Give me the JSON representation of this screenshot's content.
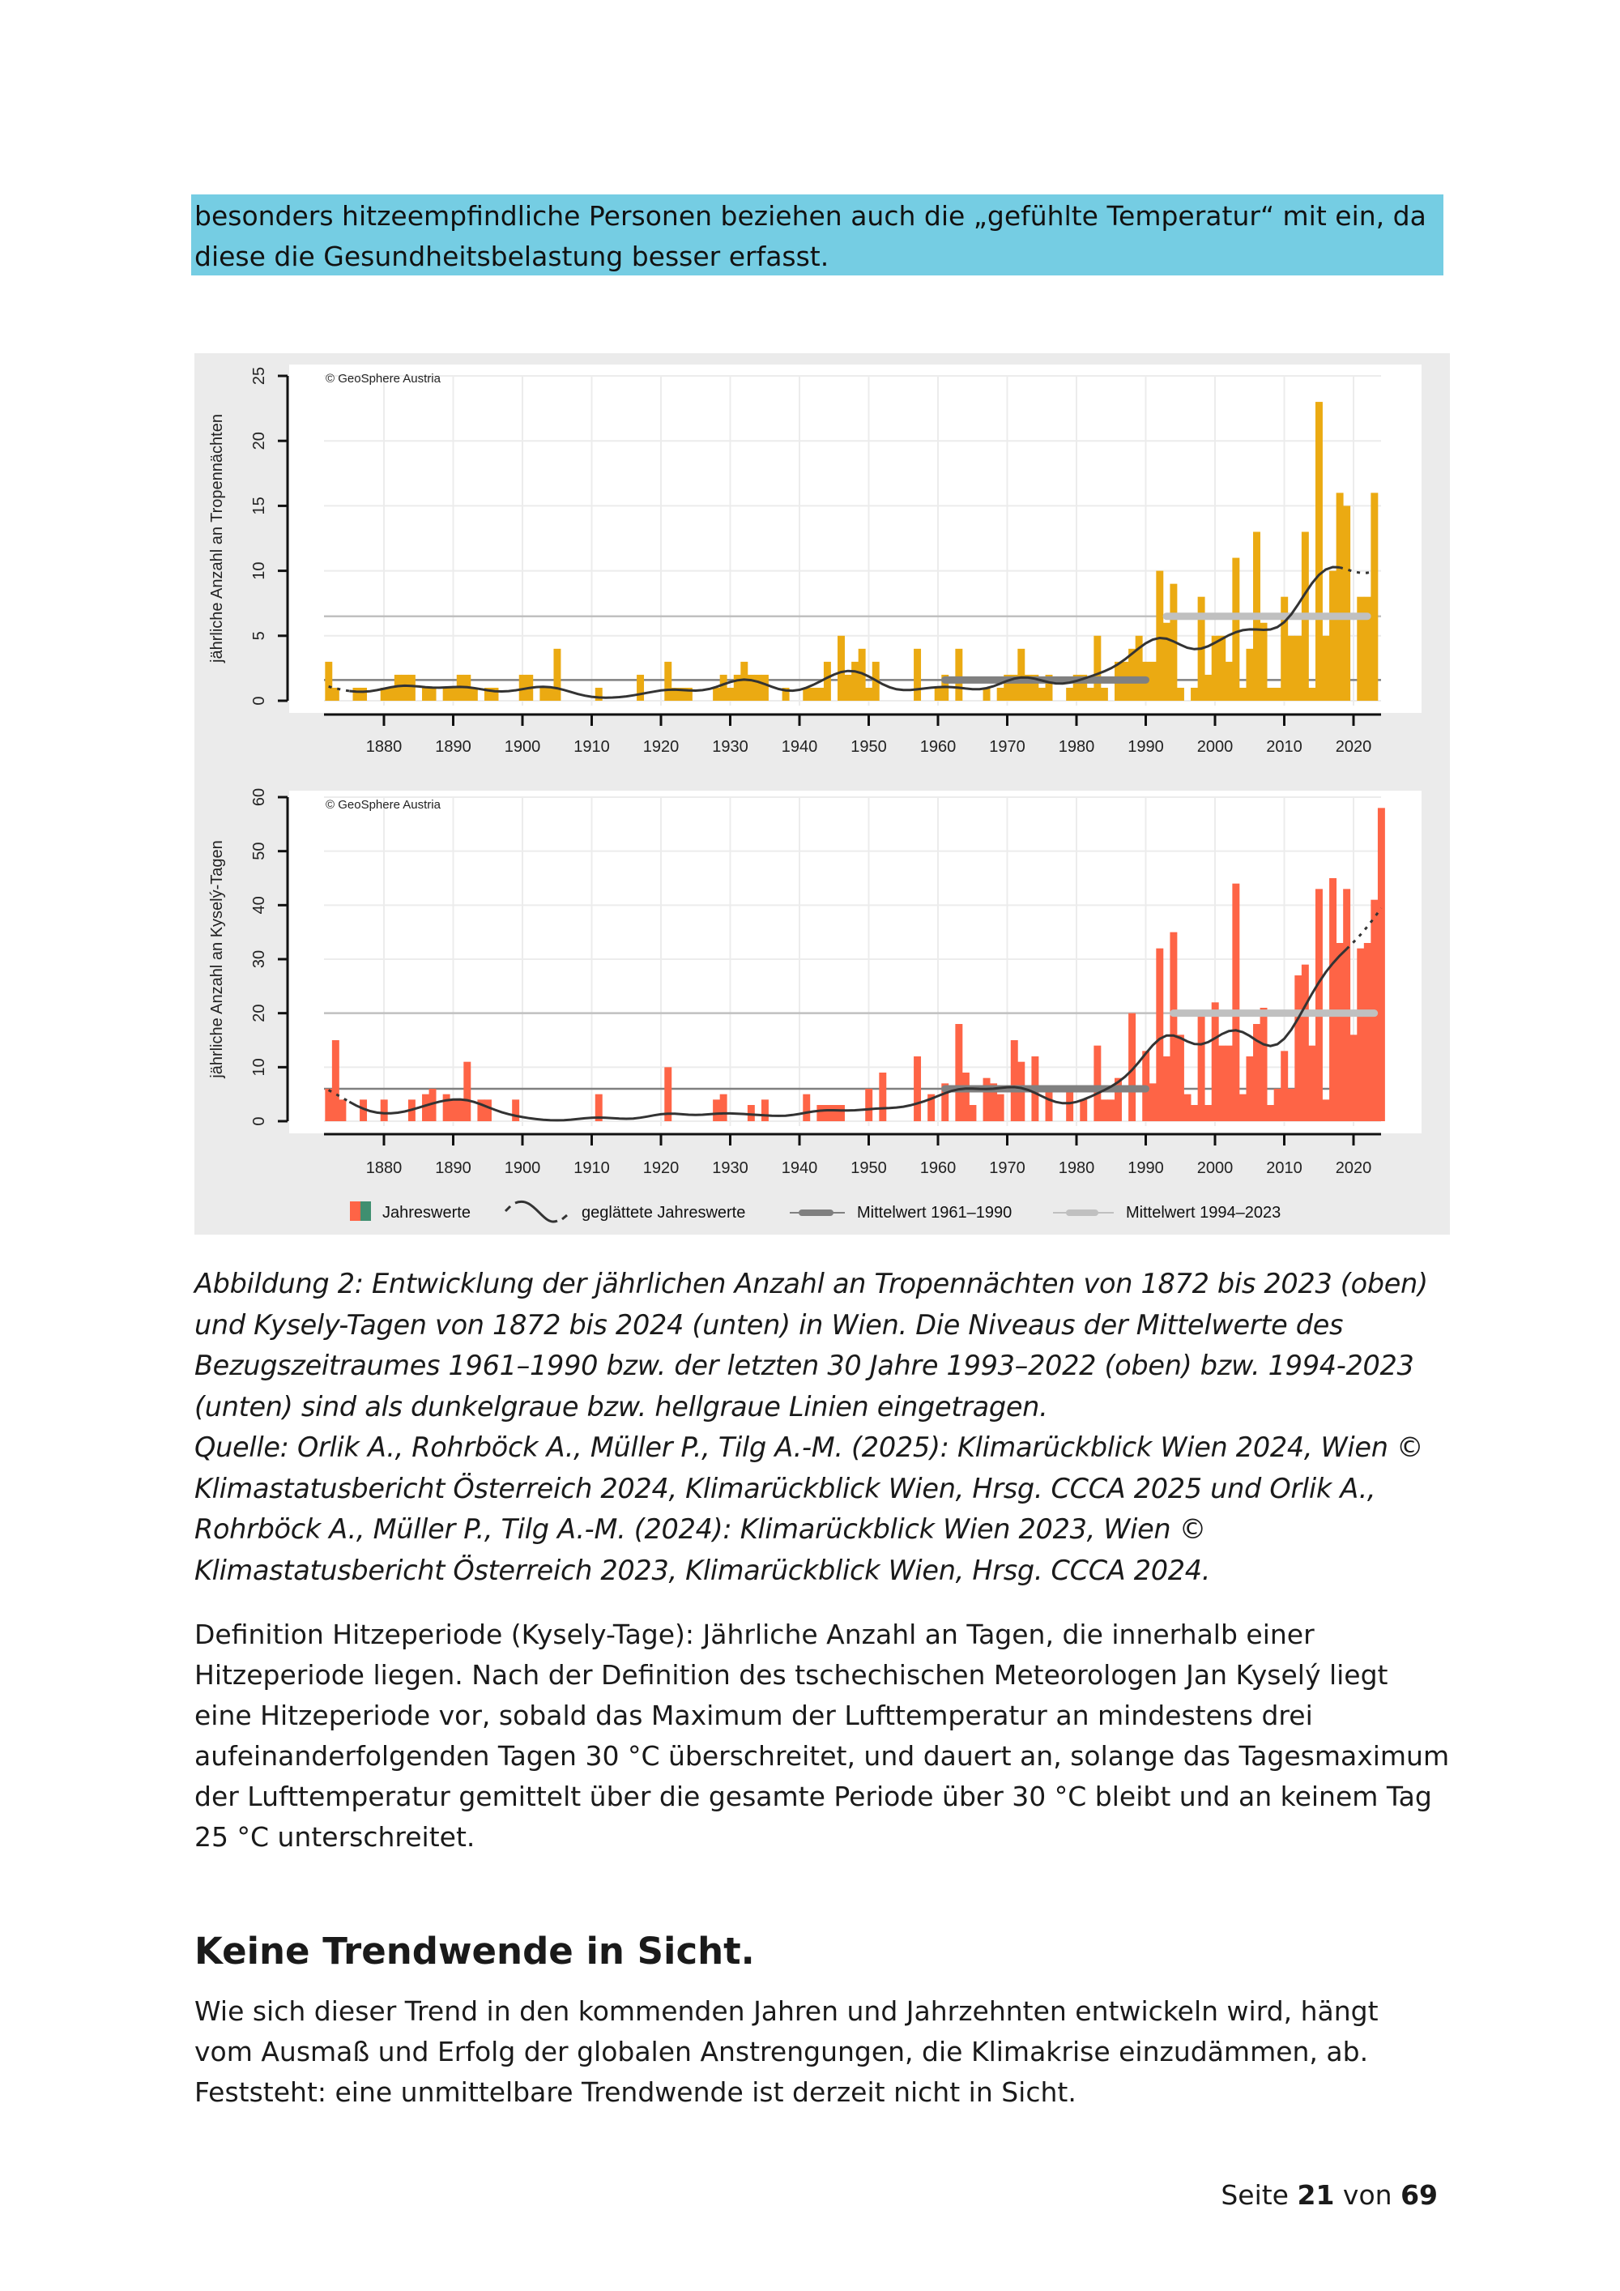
{
  "highlight": {
    "lines": [
      "besonders hitzeempfindliche Personen beziehen auch die „gefühlte Temperatur“ mit ein, da",
      "diese die Gesundheitsbelastung besser erfasst."
    ],
    "color": "#75cde3"
  },
  "figure": {
    "credit": "© GeoSphere Austria",
    "legend": {
      "bars": "Jahreswerte",
      "smooth": "geglättete Jahreswerte",
      "mean_ref": "Mittelwert 1961–1990",
      "mean_recent": "Mittelwert 1994–2023"
    }
  },
  "chart_data": [
    {
      "type": "bar",
      "ylabel": "jährliche Anzahl an Tropennächten",
      "xlabel": "",
      "x_range": [
        1872,
        2023
      ],
      "xticks": [
        "1880",
        "1890",
        "1900",
        "1910",
        "1920",
        "1930",
        "1940",
        "1950",
        "1960",
        "1970",
        "1980",
        "1990",
        "2000",
        "2010",
        "2020"
      ],
      "yticks": [
        "0",
        "5",
        "10",
        "15",
        "20",
        "25"
      ],
      "ylim": [
        0,
        25
      ],
      "grid": true,
      "bar_color": "#ebaa12",
      "values": [
        3,
        1,
        0,
        0,
        1,
        1,
        0,
        0,
        1,
        1,
        2,
        2,
        2,
        0,
        1,
        1,
        0,
        1,
        1,
        2,
        2,
        1,
        0,
        1,
        1,
        0,
        0,
        0,
        2,
        2,
        0,
        1,
        1,
        4,
        0,
        0,
        0,
        0,
        0,
        1,
        0,
        0,
        0,
        0,
        0,
        2,
        0,
        0,
        0,
        3,
        1,
        1,
        1,
        0,
        0,
        0,
        1,
        2,
        1,
        2,
        3,
        2,
        2,
        2,
        0,
        0,
        1,
        0,
        0,
        1,
        1,
        1,
        3,
        0,
        5,
        2,
        3,
        4,
        1,
        3,
        0,
        0,
        0,
        0,
        0,
        4,
        0,
        0,
        1,
        2,
        0,
        4,
        0,
        0,
        0,
        1,
        0,
        1,
        2,
        2,
        4,
        2,
        2,
        1,
        2,
        0,
        0,
        1,
        2,
        2,
        1,
        5,
        1,
        0,
        3,
        3,
        4,
        5,
        3,
        3,
        10,
        6,
        9,
        1,
        0,
        1,
        8,
        2,
        5,
        5,
        3,
        11,
        1,
        4,
        13,
        6,
        1,
        1,
        8,
        5,
        5,
        13,
        1,
        23,
        5,
        10,
        16,
        15,
        0,
        8,
        8,
        16
      ],
      "reference_lines": [
        {
          "period": [
            1961,
            1990
          ],
          "value": 1.6,
          "color": "#808080"
        },
        {
          "period": [
            1993,
            2022
          ],
          "value": 6.5,
          "color": "#c0c0c0"
        }
      ]
    },
    {
      "type": "bar",
      "ylabel": "jährliche Anzahl an Kyselý-Tagen",
      "xlabel": "",
      "x_range": [
        1872,
        2024
      ],
      "xticks": [
        "1880",
        "1890",
        "1900",
        "1910",
        "1920",
        "1930",
        "1940",
        "1950",
        "1960",
        "1970",
        "1980",
        "1990",
        "2000",
        "2010",
        "2020"
      ],
      "yticks": [
        "0",
        "10",
        "20",
        "30",
        "40",
        "50",
        "60"
      ],
      "ylim": [
        0,
        60
      ],
      "grid": true,
      "bar_color": "#fe6446",
      "values": [
        6,
        15,
        4,
        0,
        0,
        4,
        0,
        0,
        4,
        0,
        0,
        0,
        4,
        0,
        5,
        6,
        0,
        5,
        4,
        4,
        11,
        0,
        4,
        4,
        0,
        0,
        0,
        4,
        0,
        0,
        0,
        0,
        0,
        0,
        0,
        0,
        0,
        0,
        0,
        5,
        0,
        0,
        0,
        0,
        0,
        0,
        0,
        0,
        0,
        10,
        0,
        0,
        0,
        0,
        0,
        0,
        4,
        5,
        0,
        0,
        0,
        3,
        0,
        4,
        0,
        0,
        0,
        0,
        0,
        5,
        0,
        3,
        3,
        3,
        3,
        0,
        0,
        0,
        6,
        0,
        9,
        0,
        0,
        0,
        0,
        12,
        0,
        5,
        0,
        7,
        0,
        18,
        9,
        3,
        0,
        8,
        7,
        5,
        0,
        15,
        11,
        0,
        12,
        0,
        6,
        0,
        0,
        6,
        0,
        4,
        0,
        14,
        4,
        4,
        8,
        0,
        20,
        0,
        13,
        7,
        32,
        12,
        35,
        16,
        5,
        3,
        20,
        3,
        22,
        14,
        14,
        44,
        5,
        12,
        18,
        21,
        3,
        6,
        13,
        6,
        27,
        29,
        14,
        43,
        4,
        45,
        33,
        43,
        16,
        32,
        33,
        41,
        58
      ],
      "reference_lines": [
        {
          "period": [
            1961,
            1990
          ],
          "value": 6,
          "color": "#808080"
        },
        {
          "period": [
            1994,
            2023
          ],
          "value": 20,
          "color": "#c0c0c0"
        }
      ]
    }
  ],
  "caption": {
    "lines": [
      "Abbildung 2: Entwicklung der jährlichen Anzahl an Tropennächten von 1872 bis 2023 (oben)",
      "und Kysely-Tagen von 1872 bis 2024 (unten) in Wien. Die Niveaus der Mittelwerte des",
      "Bezugszeitraumes 1961–1990 bzw. der letzten 30 Jahre 1993–2022 (oben) bzw. 1994-2023",
      "(unten) sind als dunkelgraue bzw. hellgraue Linien eingetragen.",
      "Quelle: Orlik A., Rohrböck A., Müller P., Tilg A.-M. (2025): Klimarückblick Wien 2024, Wien ©",
      "Klimastatusbericht Österreich 2024, Klimarückblick Wien, Hrsg. CCCA 2025 und Orlik A.,",
      "Rohrböck A., Müller P., Tilg A.-M. (2024): Klimarückblick Wien 2023, Wien ©",
      "Klimastatusbericht Österreich 2023, Klimarückblick Wien, Hrsg. CCCA 2024."
    ]
  },
  "definition": {
    "lines": [
      "Definition Hitzeperiode (Kysely-Tage): Jährliche Anzahl an Tagen, die innerhalb einer",
      "Hitzeperiode liegen. Nach der Definition des tschechischen Meteorologen Jan Kyselý liegt",
      "eine Hitzeperiode vor, sobald das Maximum der Lufttemperatur an mindestens drei",
      "aufeinanderfolgenden Tagen 30 °C überschreitet, und dauert an, solange das Tagesmaximum",
      "der Lufttemperatur gemittelt über die gesamte Periode über 30 °C bleibt und an keinem Tag",
      "25 °C unterschreitet."
    ]
  },
  "section": {
    "heading": "Keine Trendwende in Sicht.",
    "lines": [
      "Wie sich dieser Trend in den kommenden Jahren und Jahrzehnten entwickeln wird, hängt",
      "vom Ausmaß und Erfolg der globalen Anstrengungen, die Klimakrise einzudämmen, ab.",
      "Feststeht: eine unmittelbare Trendwende ist derzeit nicht in Sicht."
    ]
  },
  "footer": {
    "prefix": "Seite",
    "page": "21",
    "middle": "von",
    "total": "69"
  }
}
